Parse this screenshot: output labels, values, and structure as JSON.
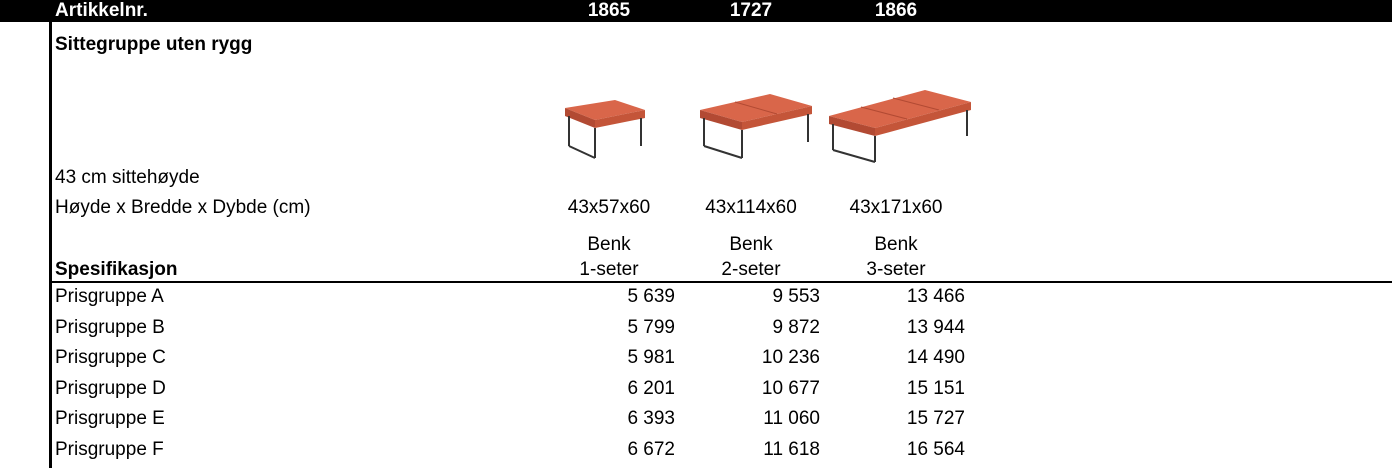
{
  "header": {
    "label": "Artikkelnr.",
    "columns": [
      "1865",
      "1727",
      "1866"
    ]
  },
  "title": "Sittegruppe uten rygg",
  "seat_height": "43 cm sittehøyde",
  "dims_label": "Høyde x Bredde x Dybde (cm)",
  "dims": [
    "43x57x60",
    "43x114x60",
    "43x171x60"
  ],
  "spec_label": "Spesifikasjon",
  "types": [
    {
      "line1": "Benk",
      "line2": "1-seter"
    },
    {
      "line1": "Benk",
      "line2": "2-seter"
    },
    {
      "line1": "Benk",
      "line2": "3-seter"
    }
  ],
  "rows": [
    {
      "label": "Prisgruppe A",
      "values": [
        "5 639",
        "9 553",
        "13 466"
      ]
    },
    {
      "label": "Prisgruppe B",
      "values": [
        "5 799",
        "9 872",
        "13 944"
      ]
    },
    {
      "label": "Prisgruppe C",
      "values": [
        "5 981",
        "10 236",
        "14 490"
      ]
    },
    {
      "label": "Prisgruppe D",
      "values": [
        "6 201",
        "10 677",
        "15 151"
      ]
    },
    {
      "label": "Prisgruppe E",
      "values": [
        "6 393",
        "11 060",
        "15 727"
      ]
    },
    {
      "label": "Prisgruppe F",
      "values": [
        "6 672",
        "11 618",
        "16 564"
      ]
    }
  ]
}
